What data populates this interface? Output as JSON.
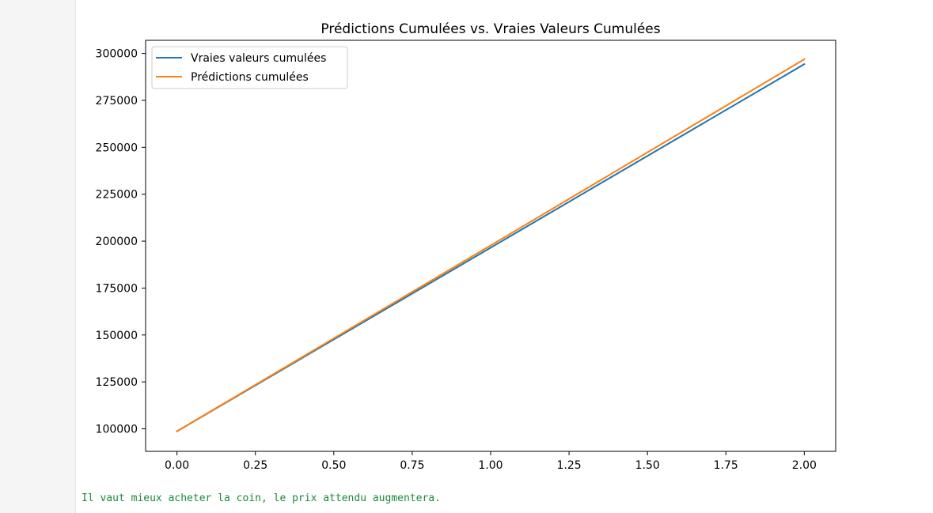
{
  "colors": {
    "series_blue": "#1f77b4",
    "series_orange": "#ff7f0e",
    "output_text": "#1a8a3a"
  },
  "chart_data": {
    "type": "line",
    "title": "Prédictions Cumulées vs. Vraies Valeurs Cumulées",
    "xlabel": "",
    "ylabel": "",
    "xlim": [
      -0.1,
      2.1
    ],
    "ylim": [
      88000,
      307000
    ],
    "xticks": [
      0.0,
      0.25,
      0.5,
      0.75,
      1.0,
      1.25,
      1.5,
      1.75,
      2.0
    ],
    "xtick_labels": [
      "0.00",
      "0.25",
      "0.50",
      "0.75",
      "1.00",
      "1.25",
      "1.50",
      "1.75",
      "2.00"
    ],
    "yticks": [
      100000,
      125000,
      150000,
      175000,
      200000,
      225000,
      250000,
      275000,
      300000
    ],
    "ytick_labels": [
      "100000",
      "125000",
      "150000",
      "175000",
      "200000",
      "225000",
      "250000",
      "275000",
      "300000"
    ],
    "grid": false,
    "legend_position": "upper-left",
    "series": [
      {
        "name": "Vraies valeurs cumulées",
        "color": "#1f77b4",
        "x": [
          0,
          1,
          2
        ],
        "y": [
          98700,
          196500,
          294300
        ]
      },
      {
        "name": "Prédictions cumulées",
        "color": "#ff7f0e",
        "x": [
          0,
          1,
          2
        ],
        "y": [
          98700,
          197700,
          296900
        ]
      }
    ]
  },
  "output": {
    "message": "Il vaut mieux acheter la coin, le prix attendu augmentera."
  }
}
